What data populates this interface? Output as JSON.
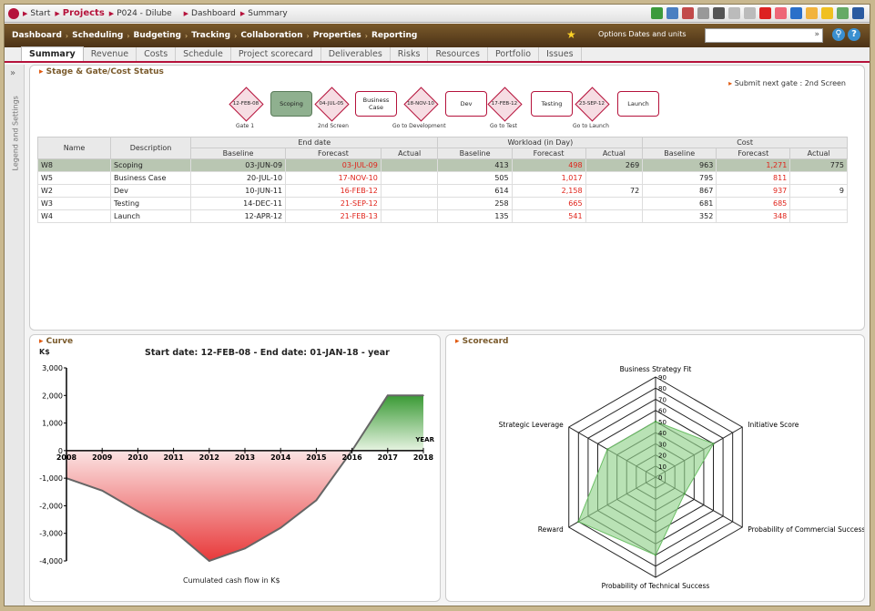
{
  "topbar": {
    "crumbs": [
      "Start",
      "Projects",
      "P024 - Dilube",
      "Dashboard",
      "Summary"
    ]
  },
  "menu": {
    "items": [
      "Dashboard",
      "Scheduling",
      "Budgeting",
      "Tracking",
      "Collaboration",
      "Properties",
      "Reporting"
    ],
    "options_label": "Options  Dates and units",
    "search_value": ""
  },
  "tabs": [
    "Summary",
    "Revenue",
    "Costs",
    "Schedule",
    "Project scorecard",
    "Deliverables",
    "Risks",
    "Resources",
    "Portfolio",
    "Issues"
  ],
  "sidebar": {
    "label": "Legend and Settings"
  },
  "stage_panel": {
    "title": "Stage & Gate/Cost Status",
    "submit": "Submit next gate : 2nd Screen",
    "gates": [
      {
        "date": "12-FEB-08",
        "label": "Gate 1"
      },
      {
        "date": "04-JUL-05",
        "label": "2nd Screen"
      },
      {
        "date": "18-NOV-10",
        "label": "Go to Development"
      },
      {
        "date": "17-FEB-12",
        "label": "Go to Test"
      },
      {
        "date": "23-SEP-12",
        "label": "Go to Launch"
      }
    ],
    "stages": [
      "Scoping",
      "Business Case",
      "Dev",
      "Testing",
      "Launch"
    ],
    "table": {
      "group_headers": [
        "End date",
        "Workload (in Day)",
        "Cost"
      ],
      "col_headers": [
        "Name",
        "Description",
        "Baseline",
        "Forecast",
        "Actual",
        "Baseline",
        "Forecast",
        "Actual",
        "Baseline",
        "Forecast",
        "Actual"
      ],
      "rows": [
        [
          "W8",
          "Scoping",
          "03-JUN-09",
          "03-JUL-09",
          "",
          "413",
          "498",
          "269",
          "963",
          "1,271",
          "775"
        ],
        [
          "W5",
          "Business Case",
          "20-JUL-10",
          "17-NOV-10",
          "",
          "505",
          "1,017",
          "",
          "795",
          "811",
          ""
        ],
        [
          "W2",
          "Dev",
          "10-JUN-11",
          "16-FEB-12",
          "",
          "614",
          "2,158",
          "72",
          "867",
          "937",
          "9"
        ],
        [
          "W3",
          "Testing",
          "14-DEC-11",
          "21-SEP-12",
          "",
          "258",
          "665",
          "",
          "681",
          "685",
          ""
        ],
        [
          "W4",
          "Launch",
          "12-APR-12",
          "21-FEB-13",
          "",
          "135",
          "541",
          "",
          "352",
          "348",
          ""
        ]
      ]
    }
  },
  "curve_panel": {
    "title": "Curve",
    "chart_data": {
      "type": "area",
      "title": "Start date: 12-FEB-08 - End date: 01-JAN-18 - year",
      "ylabel": "K$",
      "xlabel": "YEAR",
      "footer": "Cumulated cash flow in K$",
      "x": [
        2008,
        2009,
        2010,
        2011,
        2012,
        2013,
        2014,
        2015,
        2016,
        2017,
        2018
      ],
      "y": [
        -1000,
        -1450,
        -2200,
        -2900,
        -4000,
        -3550,
        -2800,
        -1800,
        0,
        2000,
        2000
      ],
      "ylim": [
        -4000,
        3000
      ],
      "yticks": [
        "3,000",
        "2,000",
        "1,000",
        "0",
        "-1,000",
        "-2,000",
        "-3,000",
        "-4,000"
      ],
      "grid": false
    }
  },
  "scorecard_panel": {
    "title": "Scorecard",
    "chart_data": {
      "type": "radar",
      "axes": [
        "Business Strategy Fit",
        "Initiative Score",
        "Probability of Commercial Success",
        "Probability of Technical Success",
        "Reward",
        "Strategic Leverage"
      ],
      "values": [
        50,
        60,
        30,
        70,
        80,
        50
      ],
      "rmax": 90,
      "ticks": [
        "0",
        "10",
        "20",
        "30",
        "40",
        "50",
        "60",
        "70",
        "80",
        "90"
      ]
    }
  }
}
